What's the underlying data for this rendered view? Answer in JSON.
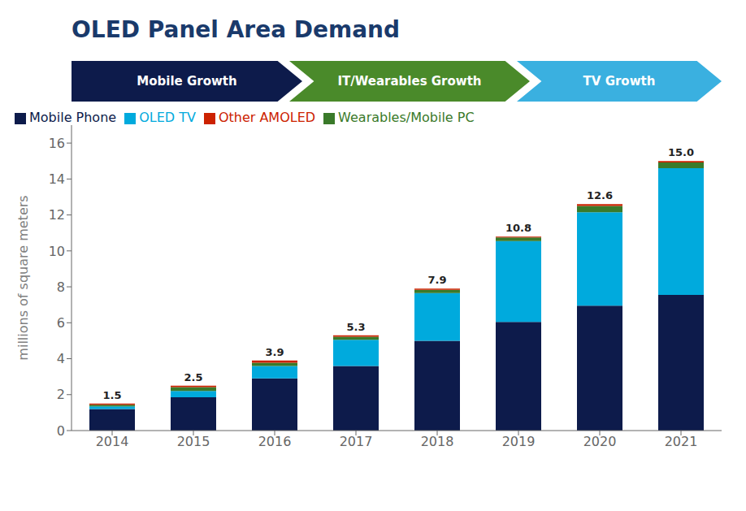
{
  "chart_data": {
    "type": "bar",
    "stacked": true,
    "title": "OLED Panel Area Demand",
    "ylabel": "millions of square meters",
    "categories": [
      "2014",
      "2015",
      "2016",
      "2017",
      "2018",
      "2019",
      "2020",
      "2021"
    ],
    "series": [
      {
        "name": "Mobile Phone",
        "color": "#0d1b4b",
        "values": [
          1.2,
          1.85,
          2.9,
          3.6,
          5.0,
          6.05,
          6.95,
          7.55
        ]
      },
      {
        "name": "OLED TV",
        "color": "#00aadd",
        "values": [
          0.15,
          0.35,
          0.7,
          1.45,
          2.65,
          4.5,
          5.2,
          7.05
        ]
      },
      {
        "name": "Wearables/Mobile PC",
        "color": "#3a7a2a",
        "values": [
          0.08,
          0.22,
          0.18,
          0.17,
          0.18,
          0.2,
          0.35,
          0.32
        ]
      },
      {
        "name": "Other AMOLED",
        "color": "#cc2200",
        "values": [
          0.07,
          0.08,
          0.12,
          0.08,
          0.07,
          0.05,
          0.1,
          0.08
        ]
      }
    ],
    "totals": [
      1.5,
      2.5,
      3.9,
      5.3,
      7.9,
      10.8,
      12.6,
      15.0
    ],
    "total_labels": [
      "1.5",
      "2.5",
      "3.9",
      "5.3",
      "7.9",
      "10.8",
      "12.6",
      "15.0"
    ],
    "annotations": [
      {
        "text": "Mobile Growth",
        "color": "#0d1b4b"
      },
      {
        "text": "IT/Wearables Growth",
        "color": "#4a8a2a"
      },
      {
        "text": "TV Growth",
        "color": "#3ab0e0"
      }
    ],
    "ylim": [
      0,
      17
    ],
    "yticks": [
      0,
      2,
      4,
      6,
      8,
      10,
      12,
      14,
      16
    ],
    "grid": false,
    "legend": "upper left",
    "title_color": "#1a3a6b"
  }
}
